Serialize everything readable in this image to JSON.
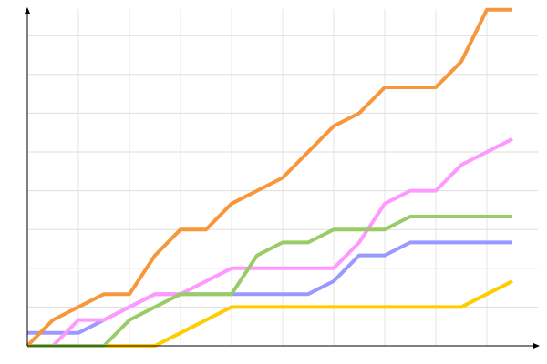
{
  "chart_data": {
    "type": "line",
    "x": [
      0,
      1,
      2,
      3,
      4,
      5,
      6,
      7,
      8,
      9,
      10,
      11,
      12,
      13,
      14,
      15,
      16,
      17,
      18,
      19
    ],
    "xlim": [
      0,
      20
    ],
    "xticks": [
      2,
      4,
      6,
      8,
      10,
      12,
      14,
      16,
      18
    ],
    "ylim": [
      0,
      26
    ],
    "yticks": [
      3,
      6,
      9,
      12,
      15,
      18,
      21,
      24
    ],
    "grid": true,
    "series": [
      {
        "color": "#9999ff",
        "values": [
          1,
          1,
          1,
          2,
          3,
          4,
          4,
          4,
          4,
          4,
          4,
          4,
          5,
          7,
          7,
          8,
          8,
          8,
          8,
          8
        ]
      },
      {
        "color": "#ff99ff",
        "values": [
          0,
          0,
          2,
          2,
          3,
          4,
          4,
          5,
          6,
          6,
          6,
          6,
          6,
          8,
          11,
          12,
          12,
          14,
          15,
          16
        ]
      },
      {
        "color": "#ffcc00",
        "values": [
          0,
          0,
          0,
          0,
          0,
          0,
          1,
          2,
          3,
          3,
          3,
          3,
          3,
          3,
          3,
          3,
          3,
          3,
          4,
          5
        ]
      },
      {
        "color": "#99cc66",
        "values": [
          0,
          0,
          0,
          0,
          2,
          3,
          4,
          4,
          4,
          7,
          8,
          8,
          9,
          9,
          9,
          10,
          10,
          10,
          10,
          10
        ]
      },
      {
        "color": "#f7963a",
        "values": [
          0,
          2,
          3,
          4,
          4,
          7,
          9,
          9,
          11,
          12,
          13,
          15,
          17,
          18,
          20,
          20,
          20,
          22,
          26,
          26
        ]
      }
    ]
  }
}
